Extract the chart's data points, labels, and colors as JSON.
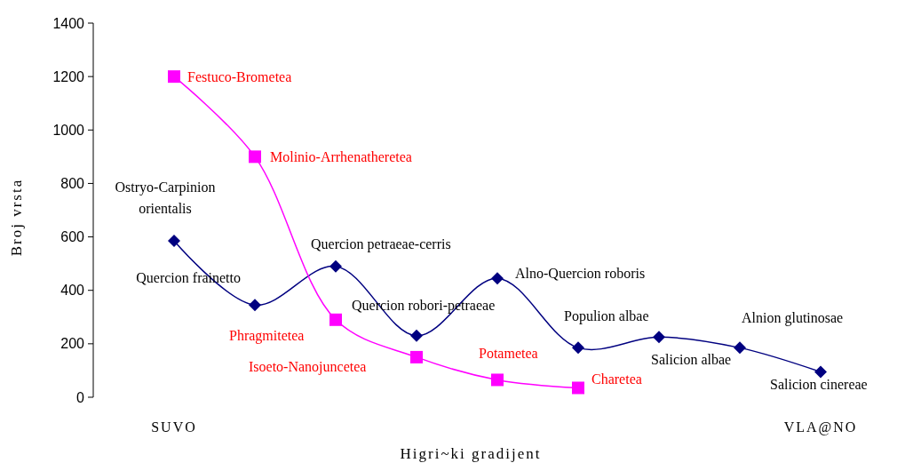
{
  "chart_data": {
    "type": "line",
    "xlabel": "Higri~ki gradijent",
    "ylabel": "Broj vrsta",
    "categories": [
      "SUVO",
      null,
      null,
      null,
      null,
      null,
      null,
      null,
      "VLA@NO"
    ],
    "ylim": [
      0,
      1400
    ],
    "yticks": [
      0,
      200,
      400,
      600,
      800,
      1000,
      1200,
      1400
    ],
    "series": [
      {
        "color": "#000080",
        "marker": "diamond",
        "values": [
          585,
          345,
          490,
          230,
          445,
          185,
          225,
          185,
          95
        ]
      },
      {
        "color": "#ff00ff",
        "marker": "square",
        "values": [
          1200,
          900,
          290,
          150,
          65,
          35,
          null,
          null,
          null
        ]
      }
    ],
    "annotations": [
      "Ostryo-Carpinion orientalis",
      "Quercion frainetto",
      "Quercion petraeae-cerris",
      "Quercion robori-petraeae",
      "Alno-Quercion roboris",
      "Populion albae",
      "Salicion albae",
      "Alnion glutinosae",
      "Salicion cinereae",
      "Festuco-Brometea",
      "Molinio-Arrhenatheretea",
      "Phragmitetea",
      "Isoeto-Nanojuncetea",
      "Potametea",
      "Charetea"
    ]
  }
}
